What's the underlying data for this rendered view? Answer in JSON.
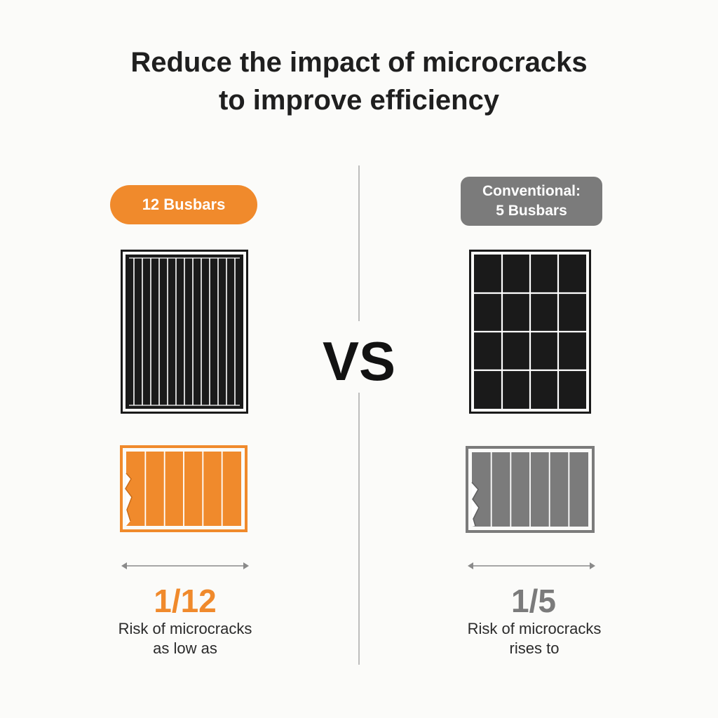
{
  "title": {
    "line1": "Reduce the impact of microcracks",
    "line2": "to improve efficiency"
  },
  "vs_label": "VS",
  "colors": {
    "accent": "#f08a2c",
    "gray": "#7b7b7b",
    "panel": "#1a1a1a",
    "divider": "#bdbdbd"
  },
  "left": {
    "badge": "12 Busbars",
    "ratio": "1/12",
    "caption_line1": "Risk of microcracks",
    "caption_line2": "as low as"
  },
  "right": {
    "badge_line1": "Conventional:",
    "badge_line2": "5 Busbars",
    "ratio": "1/5",
    "caption_line1": "Risk of microcracks",
    "caption_line2": "rises to"
  }
}
